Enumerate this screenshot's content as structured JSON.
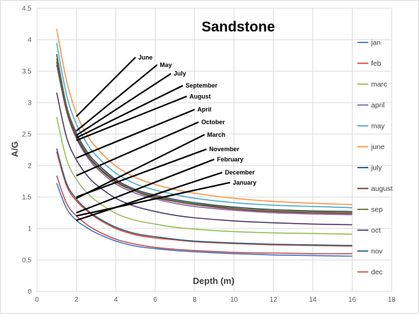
{
  "chart_data": {
    "type": "line",
    "title": "Sandstone",
    "xlabel": "Depth (m)",
    "ylabel": "A/G",
    "xlim": [
      0,
      18
    ],
    "ylim": [
      0,
      4.5
    ],
    "x_ticks": [
      "0",
      "2",
      "4",
      "6",
      "8",
      "10",
      "12",
      "14",
      "16",
      "18"
    ],
    "y_ticks": [
      "0",
      "0.5",
      "1",
      "1.5",
      "2",
      "2.5",
      "3",
      "3.5",
      "4",
      "4.5"
    ],
    "grid": true,
    "legend_position": "right",
    "x": [
      1,
      1.5,
      2,
      2.5,
      3,
      4,
      5,
      6,
      7,
      8,
      10,
      12,
      14,
      16
    ],
    "series": [
      {
        "name": "jan",
        "color": "#4472c4",
        "values": [
          1.72,
          1.32,
          1.13,
          1.02,
          0.93,
          0.8,
          0.72,
          0.68,
          0.65,
          0.63,
          0.6,
          0.58,
          0.57,
          0.56
        ]
      },
      {
        "name": "feb",
        "color": "#ed3b3b",
        "values": [
          2.22,
          1.68,
          1.44,
          1.29,
          1.17,
          1.0,
          0.9,
          0.85,
          0.82,
          0.79,
          0.76,
          0.74,
          0.73,
          0.72
        ]
      },
      {
        "name": "marc",
        "color": "#9bbb59",
        "values": [
          2.77,
          2.1,
          1.78,
          1.58,
          1.44,
          1.24,
          1.13,
          1.07,
          1.02,
          0.99,
          0.95,
          0.93,
          0.92,
          0.91
        ]
      },
      {
        "name": "april",
        "color": "#8064a2",
        "values": [
          3.6,
          2.86,
          2.43,
          2.16,
          1.97,
          1.71,
          1.56,
          1.47,
          1.4,
          1.35,
          1.29,
          1.25,
          1.23,
          1.22
        ]
      },
      {
        "name": "may",
        "color": "#4bacc6",
        "values": [
          3.95,
          3.12,
          2.66,
          2.37,
          2.16,
          1.88,
          1.71,
          1.61,
          1.54,
          1.48,
          1.41,
          1.37,
          1.35,
          1.33
        ]
      },
      {
        "name": "june",
        "color": "#f79646",
        "values": [
          4.17,
          3.35,
          2.83,
          2.51,
          2.29,
          1.99,
          1.81,
          1.7,
          1.62,
          1.56,
          1.48,
          1.43,
          1.4,
          1.38
        ]
      },
      {
        "name": "july",
        "color": "#2c4d75",
        "values": [
          3.77,
          2.95,
          2.52,
          2.24,
          2.05,
          1.78,
          1.62,
          1.53,
          1.46,
          1.41,
          1.34,
          1.3,
          1.28,
          1.27
        ]
      },
      {
        "name": "august",
        "color": "#772c2a",
        "values": [
          3.65,
          2.89,
          2.46,
          2.19,
          2.0,
          1.74,
          1.59,
          1.49,
          1.43,
          1.38,
          1.31,
          1.27,
          1.25,
          1.24
        ]
      },
      {
        "name": "sep",
        "color": "#5f7530",
        "values": [
          3.7,
          2.92,
          2.49,
          2.21,
          2.02,
          1.76,
          1.6,
          1.51,
          1.44,
          1.39,
          1.33,
          1.29,
          1.27,
          1.26
        ]
      },
      {
        "name": "oct",
        "color": "#4d3b62",
        "values": [
          3.16,
          2.45,
          2.09,
          1.86,
          1.7,
          1.48,
          1.35,
          1.27,
          1.21,
          1.17,
          1.12,
          1.09,
          1.07,
          1.06
        ]
      },
      {
        "name": "nov",
        "color": "#276a7c",
        "values": [
          2.27,
          1.72,
          1.47,
          1.31,
          1.19,
          1.02,
          0.92,
          0.87,
          0.83,
          0.8,
          0.77,
          0.75,
          0.74,
          0.73
        ]
      },
      {
        "name": "dec",
        "color": "#c0504d",
        "values": [
          1.84,
          1.4,
          1.2,
          1.07,
          0.97,
          0.83,
          0.75,
          0.7,
          0.67,
          0.65,
          0.62,
          0.61,
          0.6,
          0.6
        ]
      }
    ],
    "annotations": [
      {
        "text": "June",
        "from": [
          2.0,
          2.78
        ],
        "to": [
          5.0,
          3.72
        ]
      },
      {
        "text": "May",
        "from": [
          2.0,
          2.55
        ],
        "to": [
          6.1,
          3.6
        ]
      },
      {
        "text": "July",
        "from": [
          2.0,
          2.48
        ],
        "to": [
          6.8,
          3.46
        ]
      },
      {
        "text": "September",
        "from": [
          2.0,
          2.44
        ],
        "to": [
          7.4,
          3.27
        ]
      },
      {
        "text": "August",
        "from": [
          2.0,
          2.4
        ],
        "to": [
          7.6,
          3.1
        ]
      },
      {
        "text": "April",
        "from": [
          2.0,
          2.12
        ],
        "to": [
          8.0,
          2.89
        ]
      },
      {
        "text": "October",
        "from": [
          2.0,
          1.84
        ],
        "to": [
          8.2,
          2.69
        ]
      },
      {
        "text": "March",
        "from": [
          2.0,
          1.48
        ],
        "to": [
          8.5,
          2.49
        ]
      },
      {
        "text": "November",
        "from": [
          2.0,
          1.5
        ],
        "to": [
          8.6,
          2.26
        ]
      },
      {
        "text": "February",
        "from": [
          2.0,
          1.25
        ],
        "to": [
          9.0,
          2.1
        ]
      },
      {
        "text": "December",
        "from": [
          2.0,
          1.13
        ],
        "to": [
          9.4,
          1.89
        ]
      },
      {
        "text": "January",
        "from": [
          2.0,
          1.2
        ],
        "to": [
          9.8,
          1.73
        ]
      }
    ]
  }
}
